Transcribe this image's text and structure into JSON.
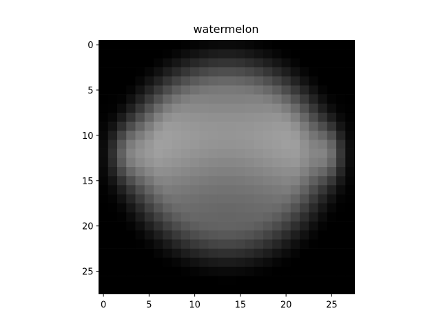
{
  "chart_data": {
    "type": "heatmap",
    "title": "watermelon",
    "xlabel": "",
    "ylabel": "",
    "colormap": "gray",
    "value_range": [
      0,
      255
    ],
    "shape": [
      28,
      28
    ],
    "xlim": [
      -0.5,
      27.5
    ],
    "ylim": [
      27.5,
      -0.5
    ],
    "x_ticks": [
      0,
      5,
      10,
      15,
      20,
      25
    ],
    "y_ticks": [
      0,
      5,
      10,
      15,
      20,
      25
    ],
    "grid": false,
    "legend": "none",
    "colorbar": false
  }
}
